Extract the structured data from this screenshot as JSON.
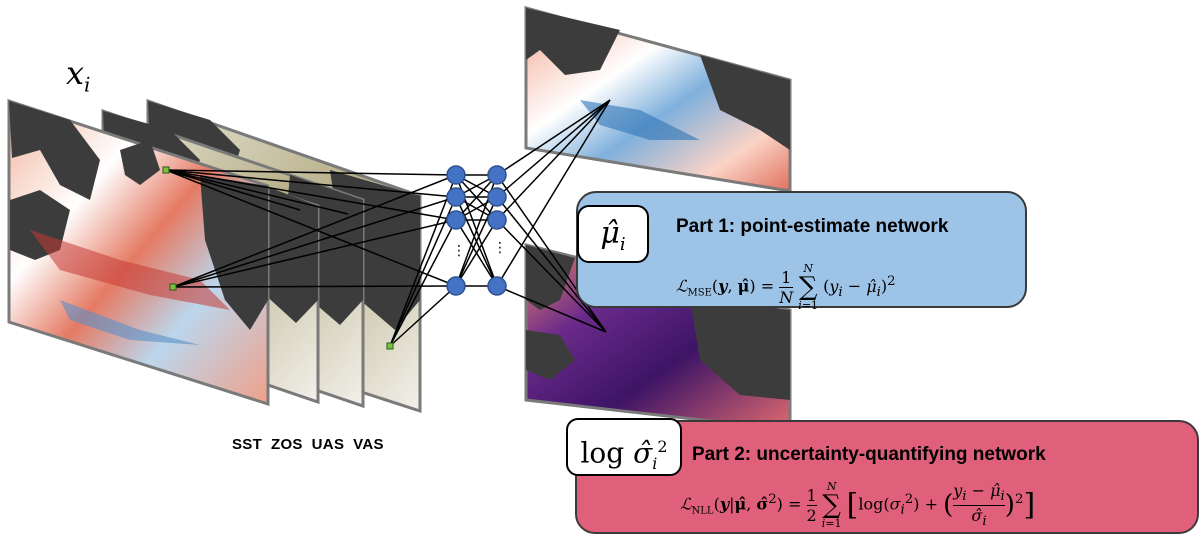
{
  "input_label": "x_i",
  "layer_labels": "SST  ZOS  UAS  VAS",
  "ellipsis": "⋮",
  "part1": {
    "symbol": "μ̂ᵢ",
    "title": "Part 1: point-estimate network",
    "formula": "ℒ_MSE(𝒚, 𝝁̂) = (1/N) Σ_{i=1}^{N} (yᵢ − μ̂ᵢ)²",
    "color": "#9dc3e6"
  },
  "part2": {
    "symbol": "log σ̂ᵢ²",
    "title": "Part 2: uncertainty-quantifying network",
    "formula": "ℒ_NLL(𝒚|𝝁̂, 𝝈̂²) = ½ Σ_{i=1}^{N} [ log(σᵢ²) + ((yᵢ − μ̂ᵢ)/σ̂ᵢ)² ]",
    "color": "#e0607b"
  },
  "colors": {
    "land": "#3c3c3c",
    "neuron": "#4472c4",
    "ocean_warm": "#e8735a",
    "ocean_cool": "#6fa3d2",
    "variance": "#5a1e78"
  }
}
